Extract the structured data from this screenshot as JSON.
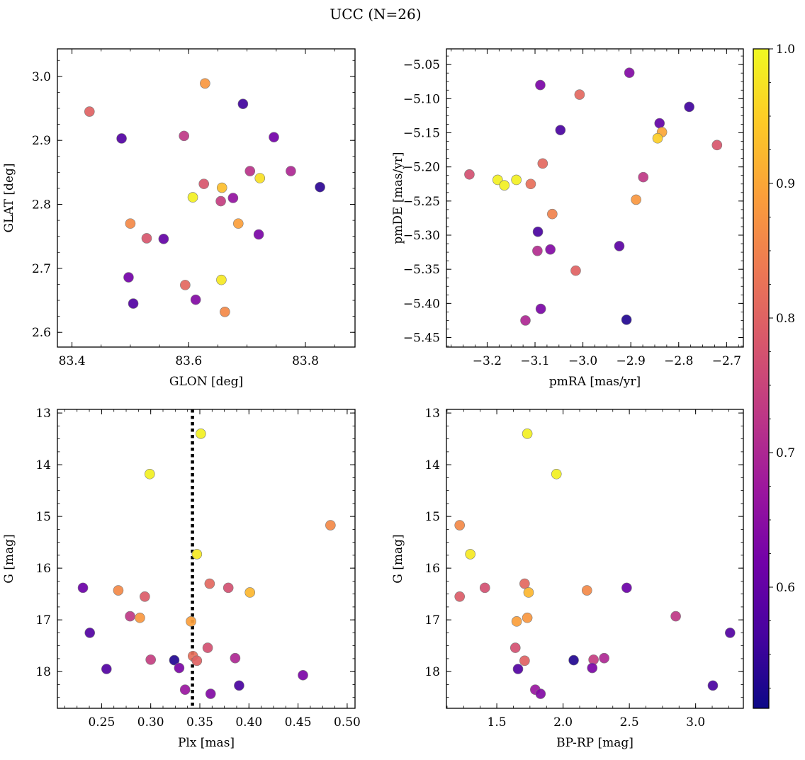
{
  "title": "UCC (N=26)",
  "colorbar": {
    "min": 0.51,
    "max": 1.0,
    "ticks": [
      0.6,
      0.7,
      0.8,
      0.9,
      1.0
    ],
    "tick_labels": [
      "0.6",
      "0.7",
      "0.8",
      "0.9",
      "1.0"
    ],
    "colormap": "plasma",
    "stops": [
      "#0d0887",
      "#46039f",
      "#7201a8",
      "#9c179e",
      "#bd3786",
      "#d8576b",
      "#ed7953",
      "#fb9f3a",
      "#fdca26",
      "#f0f921"
    ]
  },
  "chart_data": [
    {
      "type": "scatter",
      "name": "glon-glat",
      "xlabel": "GLON [deg]",
      "ylabel": "GLAT [deg]",
      "xlim": [
        83.375,
        83.885
      ],
      "ylim": [
        2.577,
        3.043
      ],
      "invert_y": false,
      "xticks": [
        83.4,
        83.6,
        83.8
      ],
      "xtick_labels": [
        "83.4",
        "83.6",
        "83.8"
      ],
      "yticks": [
        2.6,
        2.7,
        2.8,
        2.9,
        3.0
      ],
      "ytick_labels": [
        "2.6",
        "2.7",
        "2.8",
        "2.9",
        "3.0"
      ],
      "points": [
        {
          "x": 83.43,
          "y": 2.945,
          "c": 0.8
        },
        {
          "x": 83.485,
          "y": 2.903,
          "c": 0.58
        },
        {
          "x": 83.628,
          "y": 2.989,
          "c": 0.88
        },
        {
          "x": 83.693,
          "y": 2.957,
          "c": 0.56
        },
        {
          "x": 83.592,
          "y": 2.907,
          "c": 0.73
        },
        {
          "x": 83.746,
          "y": 2.905,
          "c": 0.62
        },
        {
          "x": 83.705,
          "y": 2.852,
          "c": 0.72
        },
        {
          "x": 83.775,
          "y": 2.852,
          "c": 0.7
        },
        {
          "x": 83.722,
          "y": 2.841,
          "c": 0.97
        },
        {
          "x": 83.626,
          "y": 2.832,
          "c": 0.78
        },
        {
          "x": 83.657,
          "y": 2.826,
          "c": 0.93
        },
        {
          "x": 83.825,
          "y": 2.827,
          "c": 0.54
        },
        {
          "x": 83.607,
          "y": 2.811,
          "c": 0.99
        },
        {
          "x": 83.676,
          "y": 2.81,
          "c": 0.66
        },
        {
          "x": 83.655,
          "y": 2.805,
          "c": 0.74
        },
        {
          "x": 83.5,
          "y": 2.77,
          "c": 0.86
        },
        {
          "x": 83.685,
          "y": 2.77,
          "c": 0.89
        },
        {
          "x": 83.72,
          "y": 2.753,
          "c": 0.63
        },
        {
          "x": 83.528,
          "y": 2.747,
          "c": 0.78
        },
        {
          "x": 83.557,
          "y": 2.746,
          "c": 0.6
        },
        {
          "x": 83.497,
          "y": 2.686,
          "c": 0.62
        },
        {
          "x": 83.656,
          "y": 2.682,
          "c": 0.98
        },
        {
          "x": 83.594,
          "y": 2.674,
          "c": 0.81
        },
        {
          "x": 83.505,
          "y": 2.645,
          "c": 0.58
        },
        {
          "x": 83.612,
          "y": 2.651,
          "c": 0.64
        },
        {
          "x": 83.662,
          "y": 2.632,
          "c": 0.86
        }
      ]
    },
    {
      "type": "scatter",
      "name": "pmra-pmde",
      "xlabel": "pmRA [mas/yr]",
      "ylabel": "pmDE [mas/yr]",
      "xlim": [
        -3.285,
        -2.665
      ],
      "ylim": [
        -5.464,
        -5.027
      ],
      "invert_y": false,
      "xticks": [
        -3.2,
        -3.1,
        -3.0,
        -2.9,
        -2.8,
        -2.7
      ],
      "xtick_labels": [
        "−3.2",
        "−3.1",
        "−3.0",
        "−2.9",
        "−2.8",
        "−2.7"
      ],
      "yticks": [
        -5.45,
        -5.4,
        -5.35,
        -5.3,
        -5.25,
        -5.2,
        -5.15,
        -5.1,
        -5.05
      ],
      "ytick_labels": [
        "−5.45",
        "−5.40",
        "−5.35",
        "−5.30",
        "−5.25",
        "−5.20",
        "−5.15",
        "−5.10",
        "−5.05"
      ],
      "points": [
        {
          "x": -2.903,
          "y": -5.062,
          "c": 0.64
        },
        {
          "x": -3.089,
          "y": -5.08,
          "c": 0.63
        },
        {
          "x": -3.007,
          "y": -5.094,
          "c": 0.81
        },
        {
          "x": -2.778,
          "y": -5.112,
          "c": 0.56
        },
        {
          "x": -2.84,
          "y": -5.136,
          "c": 0.6
        },
        {
          "x": -3.047,
          "y": -5.146,
          "c": 0.57
        },
        {
          "x": -2.835,
          "y": -5.149,
          "c": 0.9
        },
        {
          "x": -2.844,
          "y": -5.158,
          "c": 0.95
        },
        {
          "x": -2.72,
          "y": -5.168,
          "c": 0.78
        },
        {
          "x": -3.084,
          "y": -5.195,
          "c": 0.81
        },
        {
          "x": -3.237,
          "y": -5.211,
          "c": 0.77
        },
        {
          "x": -2.874,
          "y": -5.215,
          "c": 0.73
        },
        {
          "x": -3.178,
          "y": -5.219,
          "c": 0.99
        },
        {
          "x": -3.139,
          "y": -5.219,
          "c": 0.99
        },
        {
          "x": -3.164,
          "y": -5.227,
          "c": 0.99
        },
        {
          "x": -3.109,
          "y": -5.225,
          "c": 0.82
        },
        {
          "x": -2.889,
          "y": -5.248,
          "c": 0.88
        },
        {
          "x": -3.064,
          "y": -5.269,
          "c": 0.85
        },
        {
          "x": -3.094,
          "y": -5.295,
          "c": 0.57
        },
        {
          "x": -2.924,
          "y": -5.316,
          "c": 0.59
        },
        {
          "x": -3.068,
          "y": -5.321,
          "c": 0.64
        },
        {
          "x": -3.095,
          "y": -5.323,
          "c": 0.71
        },
        {
          "x": -3.015,
          "y": -5.352,
          "c": 0.8
        },
        {
          "x": -3.088,
          "y": -5.408,
          "c": 0.63
        },
        {
          "x": -3.12,
          "y": -5.425,
          "c": 0.7
        },
        {
          "x": -2.909,
          "y": -5.424,
          "c": 0.53
        }
      ]
    },
    {
      "type": "scatter",
      "name": "plx-g",
      "xlabel": "Plx [mas]",
      "ylabel": "G [mag]",
      "xlim": [
        0.205,
        0.508
      ],
      "ylim": [
        12.93,
        18.71
      ],
      "invert_y": true,
      "vline": {
        "x": 0.3425,
        "style": "dotted"
      },
      "xticks": [
        0.25,
        0.3,
        0.35,
        0.4,
        0.45,
        0.5
      ],
      "xtick_labels": [
        "0.25",
        "0.30",
        "0.35",
        "0.40",
        "0.45",
        "0.50"
      ],
      "yticks": [
        13,
        14,
        15,
        16,
        17,
        18
      ],
      "ytick_labels": [
        "13",
        "14",
        "15",
        "16",
        "17",
        "18"
      ],
      "points": [
        {
          "x": 0.351,
          "y": 13.4,
          "c": 0.99
        },
        {
          "x": 0.299,
          "y": 14.18,
          "c": 0.99
        },
        {
          "x": 0.483,
          "y": 15.17,
          "c": 0.86
        },
        {
          "x": 0.347,
          "y": 15.73,
          "c": 0.98
        },
        {
          "x": 0.36,
          "y": 16.3,
          "c": 0.81
        },
        {
          "x": 0.231,
          "y": 16.38,
          "c": 0.61
        },
        {
          "x": 0.379,
          "y": 16.38,
          "c": 0.77
        },
        {
          "x": 0.267,
          "y": 16.43,
          "c": 0.86
        },
        {
          "x": 0.401,
          "y": 16.47,
          "c": 0.92
        },
        {
          "x": 0.294,
          "y": 16.55,
          "c": 0.79
        },
        {
          "x": 0.279,
          "y": 16.93,
          "c": 0.73
        },
        {
          "x": 0.289,
          "y": 16.96,
          "c": 0.88
        },
        {
          "x": 0.341,
          "y": 17.03,
          "c": 0.89
        },
        {
          "x": 0.238,
          "y": 17.25,
          "c": 0.58
        },
        {
          "x": 0.358,
          "y": 17.54,
          "c": 0.77
        },
        {
          "x": 0.343,
          "y": 17.7,
          "c": 0.82
        },
        {
          "x": 0.347,
          "y": 17.79,
          "c": 0.8
        },
        {
          "x": 0.3,
          "y": 17.77,
          "c": 0.74
        },
        {
          "x": 0.324,
          "y": 17.78,
          "c": 0.53
        },
        {
          "x": 0.386,
          "y": 17.74,
          "c": 0.7
        },
        {
          "x": 0.255,
          "y": 17.95,
          "c": 0.58
        },
        {
          "x": 0.329,
          "y": 17.93,
          "c": 0.63
        },
        {
          "x": 0.455,
          "y": 18.07,
          "c": 0.63
        },
        {
          "x": 0.39,
          "y": 18.27,
          "c": 0.57
        },
        {
          "x": 0.335,
          "y": 18.35,
          "c": 0.67
        },
        {
          "x": 0.361,
          "y": 18.43,
          "c": 0.64
        }
      ]
    },
    {
      "type": "scatter",
      "name": "bprp-g",
      "xlabel": "BP-RP [mag]",
      "ylabel": "G [mag]",
      "xlim": [
        1.12,
        3.36
      ],
      "ylim": [
        12.93,
        18.71
      ],
      "invert_y": true,
      "xticks": [
        1.5,
        2.0,
        2.5,
        3.0
      ],
      "xtick_labels": [
        "1.5",
        "2.0",
        "2.5",
        "3.0"
      ],
      "yticks": [
        13,
        14,
        15,
        16,
        17,
        18
      ],
      "ytick_labels": [
        "13",
        "14",
        "15",
        "16",
        "17",
        "18"
      ],
      "points": [
        {
          "x": 1.73,
          "y": 13.4,
          "c": 0.99
        },
        {
          "x": 1.95,
          "y": 14.18,
          "c": 0.99
        },
        {
          "x": 1.22,
          "y": 15.17,
          "c": 0.86
        },
        {
          "x": 1.3,
          "y": 15.73,
          "c": 0.98
        },
        {
          "x": 1.71,
          "y": 16.3,
          "c": 0.81
        },
        {
          "x": 1.41,
          "y": 16.38,
          "c": 0.77
        },
        {
          "x": 2.48,
          "y": 16.38,
          "c": 0.61
        },
        {
          "x": 2.18,
          "y": 16.43,
          "c": 0.86
        },
        {
          "x": 1.74,
          "y": 16.47,
          "c": 0.92
        },
        {
          "x": 1.22,
          "y": 16.55,
          "c": 0.79
        },
        {
          "x": 2.85,
          "y": 16.93,
          "c": 0.73
        },
        {
          "x": 1.73,
          "y": 16.96,
          "c": 0.88
        },
        {
          "x": 1.65,
          "y": 17.03,
          "c": 0.89
        },
        {
          "x": 3.26,
          "y": 17.25,
          "c": 0.58
        },
        {
          "x": 1.64,
          "y": 17.54,
          "c": 0.77
        },
        {
          "x": 2.31,
          "y": 17.74,
          "c": 0.7
        },
        {
          "x": 2.23,
          "y": 17.77,
          "c": 0.74
        },
        {
          "x": 2.08,
          "y": 17.78,
          "c": 0.53
        },
        {
          "x": 1.71,
          "y": 17.79,
          "c": 0.8
        },
        {
          "x": 1.66,
          "y": 17.95,
          "c": 0.58
        },
        {
          "x": 2.22,
          "y": 17.93,
          "c": 0.63
        },
        {
          "x": 3.13,
          "y": 18.27,
          "c": 0.57
        },
        {
          "x": 1.79,
          "y": 18.35,
          "c": 0.67
        },
        {
          "x": 1.83,
          "y": 18.43,
          "c": 0.64
        }
      ]
    }
  ]
}
